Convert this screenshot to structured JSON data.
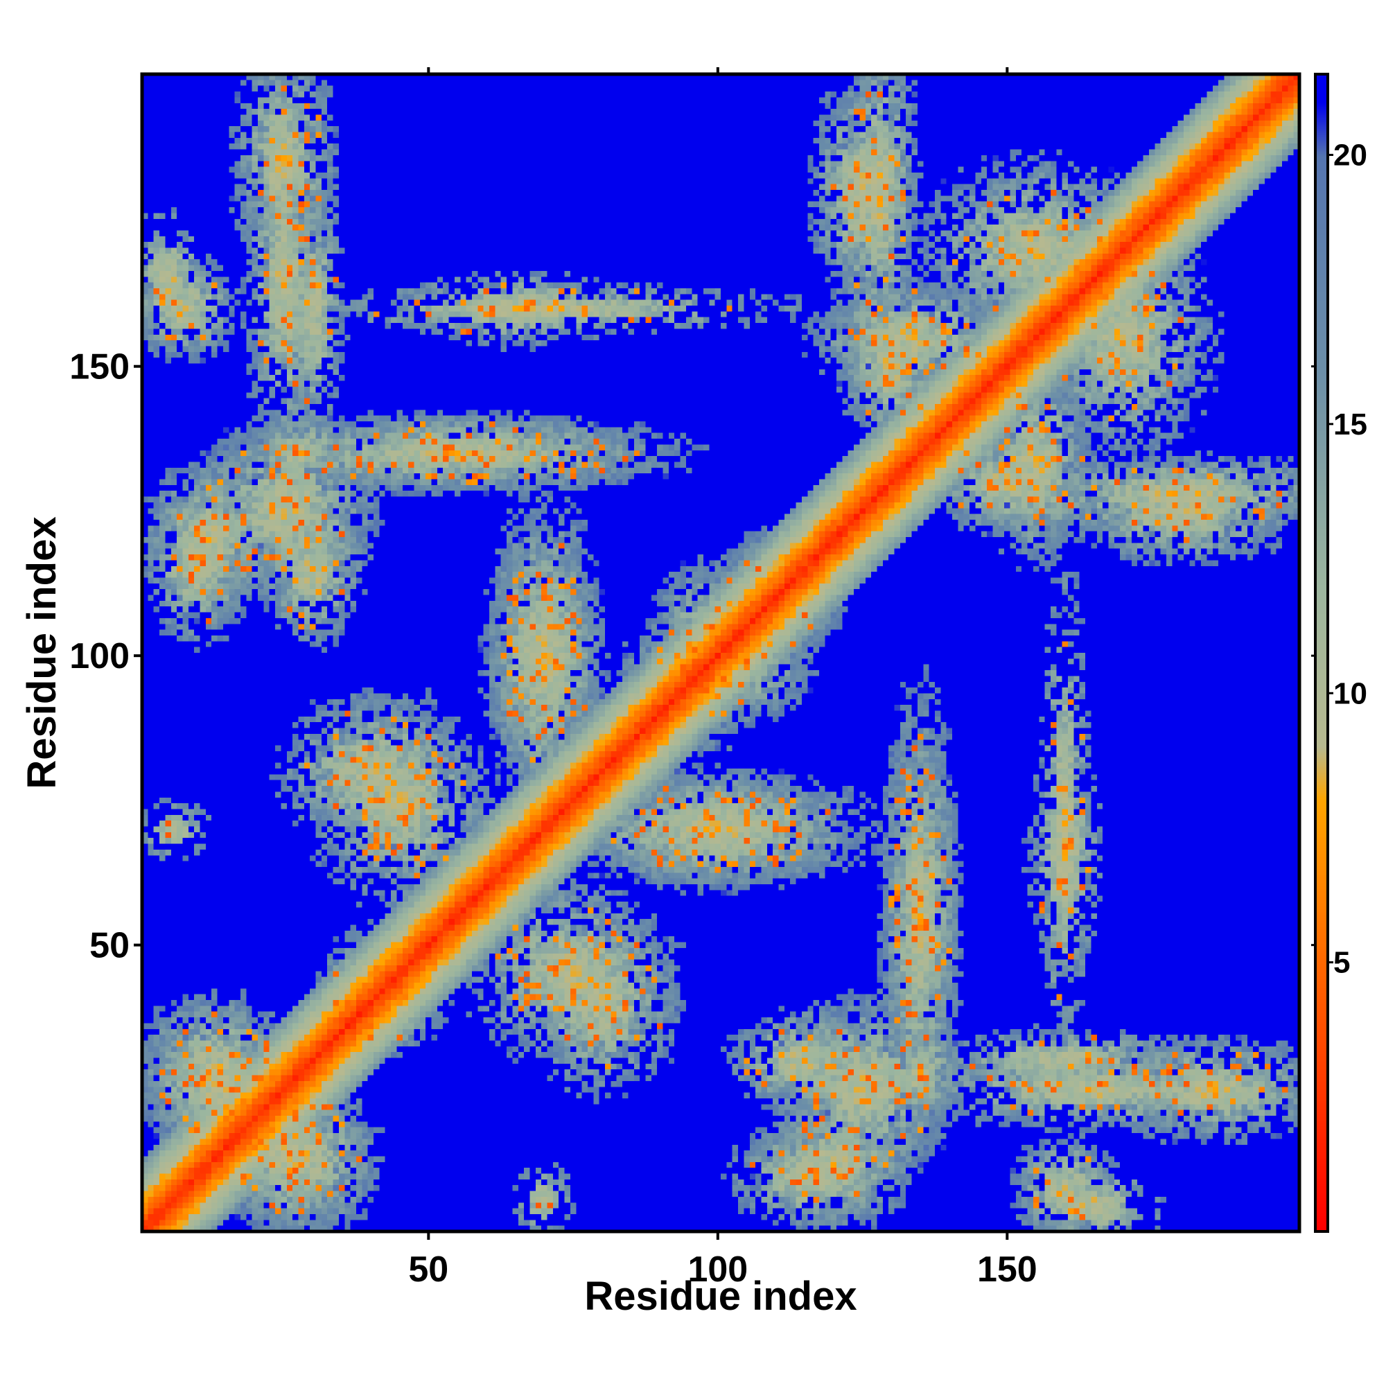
{
  "chart_data": {
    "type": "heatmap",
    "title": "",
    "xlabel": "Residue index",
    "ylabel": "Residue index",
    "n_residues": 200,
    "xlim": [
      1,
      200
    ],
    "ylim": [
      1,
      200
    ],
    "x_ticks": [
      50,
      100,
      150
    ],
    "y_ticks": [
      50,
      100,
      150
    ],
    "symmetric": true,
    "colorbar": {
      "ticks": [
        5,
        10,
        15,
        20
      ],
      "range": [
        0,
        21.5
      ],
      "stops": [
        {
          "value": 0,
          "color": "#ff0000"
        },
        {
          "value": 4,
          "color": "#ff5500"
        },
        {
          "value": 8,
          "color": "#ffa500"
        },
        {
          "value": 9,
          "color": "#b7b98f"
        },
        {
          "value": 12,
          "color": "#9cb69f"
        },
        {
          "value": 16,
          "color": "#6c8fa8"
        },
        {
          "value": 20,
          "color": "#5575b0"
        },
        {
          "value": 21,
          "color": "#0000ee"
        }
      ]
    },
    "background_value": 21.5,
    "background_color": "#0000ee",
    "diagonal": {
      "core_value": 2,
      "width_residues": 12
    },
    "contact_regions": [
      {
        "cx": 13,
        "cy": 28,
        "rx": 12,
        "ry": 12,
        "strength": 0.8
      },
      {
        "cx": 25,
        "cy": 14,
        "rx": 9,
        "ry": 12,
        "strength": 0.7
      },
      {
        "cx": 42,
        "cy": 40,
        "rx": 10,
        "ry": 8,
        "strength": 0.6
      },
      {
        "cx": 45,
        "cy": 75,
        "rx": 14,
        "ry": 16,
        "strength": 0.6
      },
      {
        "cx": 70,
        "cy": 100,
        "rx": 9,
        "ry": 18,
        "strength": 0.6
      },
      {
        "cx": 80,
        "cy": 40,
        "rx": 12,
        "ry": 14,
        "strength": 0.5
      },
      {
        "cx": 100,
        "cy": 70,
        "rx": 24,
        "ry": 9,
        "strength": 0.7
      },
      {
        "cx": 98,
        "cy": 100,
        "rx": 9,
        "ry": 14,
        "strength": 0.7
      },
      {
        "cx": 110,
        "cy": 110,
        "rx": 10,
        "ry": 10,
        "strength": 0.6
      },
      {
        "cx": 12,
        "cy": 120,
        "rx": 10,
        "ry": 12,
        "strength": 0.7
      },
      {
        "cx": 30,
        "cy": 115,
        "rx": 8,
        "ry": 12,
        "strength": 0.6
      },
      {
        "cx": 55,
        "cy": 135,
        "rx": 35,
        "ry": 6,
        "strength": 0.7
      },
      {
        "cx": 28,
        "cy": 135,
        "rx": 8,
        "ry": 6,
        "strength": 0.6
      },
      {
        "cx": 25,
        "cy": 165,
        "rx": 6,
        "ry": 30,
        "strength": 0.6
      },
      {
        "cx": 8,
        "cy": 160,
        "rx": 8,
        "ry": 8,
        "strength": 0.6
      },
      {
        "cx": 72,
        "cy": 160,
        "rx": 40,
        "ry": 4,
        "strength": 0.4
      },
      {
        "cx": 125,
        "cy": 180,
        "rx": 8,
        "ry": 18,
        "strength": 0.6
      },
      {
        "cx": 133,
        "cy": 155,
        "rx": 15,
        "ry": 9,
        "strength": 0.7
      },
      {
        "cx": 150,
        "cy": 130,
        "rx": 12,
        "ry": 8,
        "strength": 0.7
      },
      {
        "cx": 170,
        "cy": 155,
        "rx": 14,
        "ry": 18,
        "strength": 0.6
      },
      {
        "cx": 180,
        "cy": 128,
        "rx": 26,
        "ry": 6,
        "strength": 0.6
      },
      {
        "cx": 125,
        "cy": 25,
        "rx": 14,
        "ry": 14,
        "strength": 0.7
      },
      {
        "cx": 135,
        "cy": 55,
        "rx": 6,
        "ry": 26,
        "strength": 0.6
      },
      {
        "cx": 160,
        "cy": 30,
        "rx": 20,
        "ry": 5,
        "strength": 0.6
      },
      {
        "cx": 185,
        "cy": 25,
        "rx": 18,
        "ry": 8,
        "strength": 0.6
      },
      {
        "cx": 160,
        "cy": 65,
        "rx": 6,
        "ry": 20,
        "strength": 0.4
      },
      {
        "cx": 6,
        "cy": 70,
        "rx": 6,
        "ry": 5,
        "strength": 0.4
      },
      {
        "cx": 115,
        "cy": 10,
        "rx": 12,
        "ry": 8,
        "strength": 0.5
      },
      {
        "cx": 165,
        "cy": 5,
        "rx": 12,
        "ry": 6,
        "strength": 0.4
      }
    ]
  }
}
